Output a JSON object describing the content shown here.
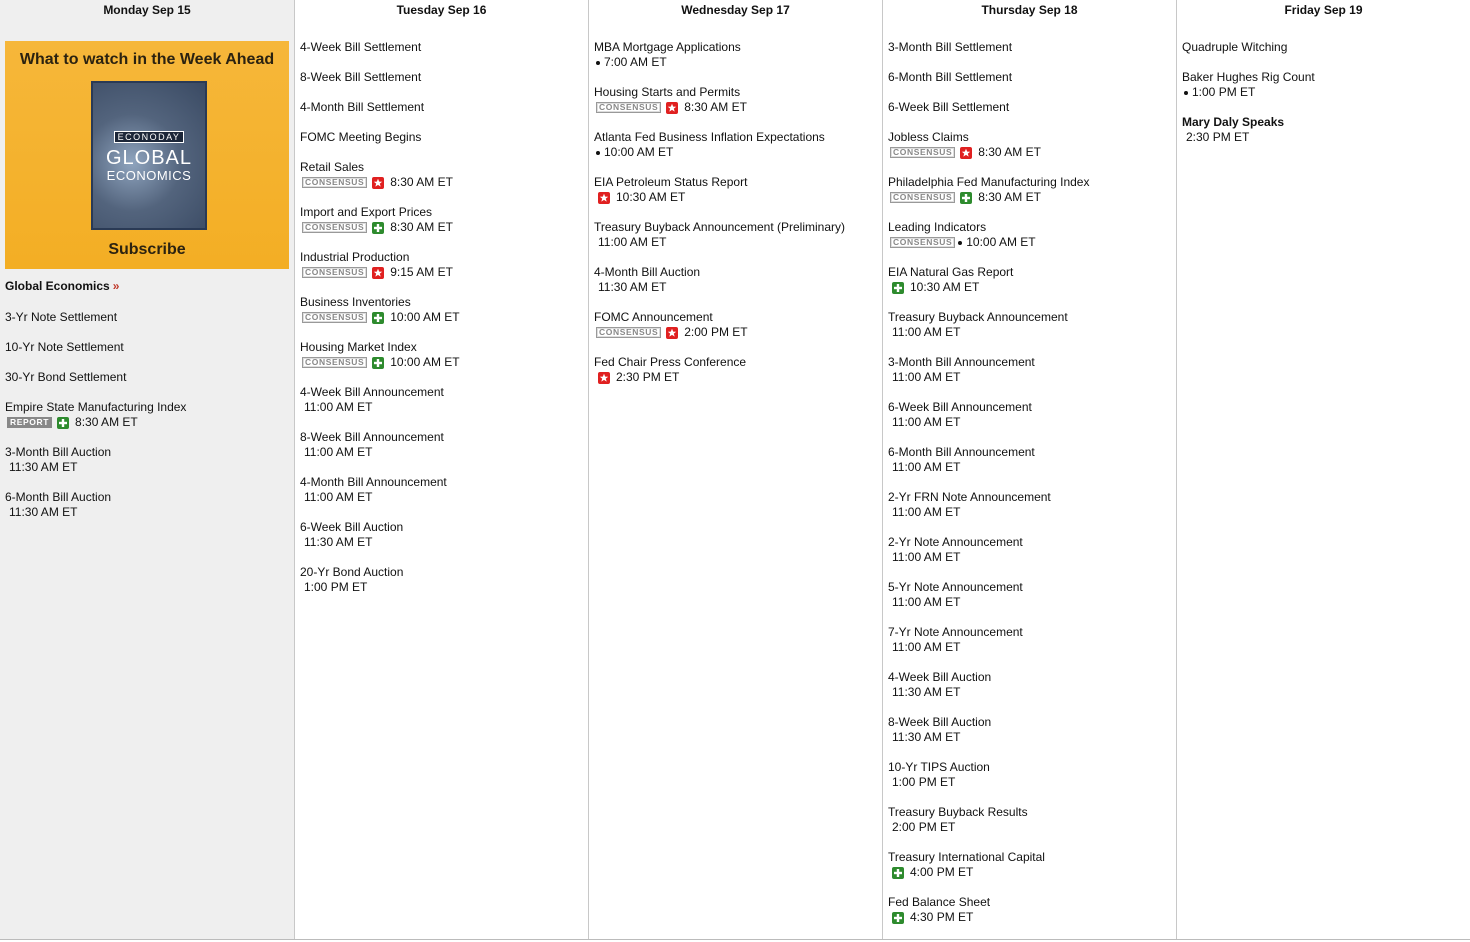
{
  "promo": {
    "title": "What to watch in the Week Ahead",
    "brand": "ECONODAY",
    "logo_line1": "GLOBAL",
    "logo_line2": "ECONOMICS",
    "cta": "Subscribe"
  },
  "link": {
    "label": "Global Economics",
    "arrow": "»"
  },
  "days": [
    {
      "header": "Monday Sep 15",
      "events": [
        {
          "name": "3-Yr Note Settlement"
        },
        {
          "name": "10-Yr Note Settlement"
        },
        {
          "name": "30-Yr Bond Settlement"
        },
        {
          "name": "Empire State Manufacturing Index",
          "badge": "REPORT",
          "icon": "plus",
          "time": "8:30 AM ET"
        },
        {
          "name": "3-Month Bill Auction",
          "time": "11:30 AM ET"
        },
        {
          "name": "6-Month Bill Auction",
          "time": "11:30 AM ET"
        }
      ]
    },
    {
      "header": "Tuesday Sep 16",
      "events": [
        {
          "name": "4-Week Bill Settlement"
        },
        {
          "name": "8-Week Bill Settlement"
        },
        {
          "name": "4-Month Bill Settlement"
        },
        {
          "name": "FOMC Meeting Begins"
        },
        {
          "name": "Retail Sales",
          "badge": "CONSENSUS",
          "icon": "star",
          "time": "8:30 AM ET"
        },
        {
          "name": "Import and Export Prices",
          "badge": "CONSENSUS",
          "icon": "plus",
          "time": "8:30 AM ET"
        },
        {
          "name": "Industrial Production",
          "badge": "CONSENSUS",
          "icon": "star",
          "time": "9:15 AM ET"
        },
        {
          "name": "Business Inventories",
          "badge": "CONSENSUS",
          "icon": "plus",
          "time": "10:00 AM ET"
        },
        {
          "name": "Housing Market Index",
          "badge": "CONSENSUS",
          "icon": "plus",
          "time": "10:00 AM ET"
        },
        {
          "name": "4-Week Bill Announcement",
          "time": "11:00 AM ET"
        },
        {
          "name": "8-Week Bill Announcement",
          "time": "11:00 AM ET"
        },
        {
          "name": "4-Month Bill Announcement",
          "time": "11:00 AM ET"
        },
        {
          "name": "6-Week Bill Auction",
          "time": "11:30 AM ET"
        },
        {
          "name": "20-Yr Bond Auction",
          "time": "1:00 PM ET"
        }
      ]
    },
    {
      "header": "Wednesday Sep 17",
      "events": [
        {
          "name": "MBA Mortgage Applications",
          "icon": "dot",
          "time": "7:00 AM ET"
        },
        {
          "name": "Housing Starts and Permits",
          "badge": "CONSENSUS",
          "icon": "star",
          "time": "8:30 AM ET"
        },
        {
          "name": "Atlanta Fed Business Inflation Expectations",
          "icon": "dot",
          "time": "10:00 AM ET"
        },
        {
          "name": "EIA Petroleum Status Report",
          "icon": "star",
          "time": "10:30 AM ET"
        },
        {
          "name": "Treasury Buyback Announcement (Preliminary)",
          "time": "11:00 AM ET"
        },
        {
          "name": "4-Month Bill Auction",
          "time": "11:30 AM ET"
        },
        {
          "name": "FOMC Announcement",
          "badge": "CONSENSUS",
          "icon": "star",
          "time": "2:00 PM ET"
        },
        {
          "name": "Fed Chair Press Conference",
          "icon": "star",
          "time": "2:30 PM ET"
        }
      ]
    },
    {
      "header": "Thursday Sep 18",
      "events": [
        {
          "name": "3-Month Bill Settlement"
        },
        {
          "name": "6-Month Bill Settlement"
        },
        {
          "name": "6-Week Bill Settlement"
        },
        {
          "name": "Jobless Claims",
          "badge": "CONSENSUS",
          "icon": "star",
          "time": "8:30 AM ET"
        },
        {
          "name": "Philadelphia Fed Manufacturing Index",
          "badge": "CONSENSUS",
          "icon": "plus",
          "time": "8:30 AM ET"
        },
        {
          "name": "Leading Indicators",
          "badge": "CONSENSUS",
          "icon": "dot",
          "time": "10:00 AM ET"
        },
        {
          "name": "EIA Natural Gas Report",
          "icon": "plus",
          "time": "10:30 AM ET"
        },
        {
          "name": "Treasury Buyback Announcement",
          "time": "11:00 AM ET"
        },
        {
          "name": "3-Month Bill Announcement",
          "time": "11:00 AM ET"
        },
        {
          "name": "6-Week Bill Announcement",
          "time": "11:00 AM ET"
        },
        {
          "name": "6-Month Bill Announcement",
          "time": "11:00 AM ET"
        },
        {
          "name": "2-Yr FRN Note Announcement",
          "time": "11:00 AM ET"
        },
        {
          "name": "2-Yr Note Announcement",
          "time": "11:00 AM ET"
        },
        {
          "name": "5-Yr Note Announcement",
          "time": "11:00 AM ET"
        },
        {
          "name": "7-Yr Note Announcement",
          "time": "11:00 AM ET"
        },
        {
          "name": "4-Week Bill Auction",
          "time": "11:30 AM ET"
        },
        {
          "name": "8-Week Bill Auction",
          "time": "11:30 AM ET"
        },
        {
          "name": "10-Yr TIPS Auction",
          "time": "1:00 PM ET"
        },
        {
          "name": "Treasury Buyback Results",
          "time": "2:00 PM ET"
        },
        {
          "name": "Treasury International Capital",
          "icon": "plus",
          "time": "4:00 PM ET"
        },
        {
          "name": "Fed Balance Sheet",
          "icon": "plus",
          "time": "4:30 PM ET"
        }
      ]
    },
    {
      "header": "Friday Sep 19",
      "events": [
        {
          "name": "Quadruple Witching"
        },
        {
          "name": "Baker Hughes Rig Count",
          "icon": "dot",
          "time": "1:00 PM ET"
        },
        {
          "name": "Mary Daly Speaks",
          "bold": true,
          "time": "2:30 PM ET"
        }
      ]
    }
  ]
}
